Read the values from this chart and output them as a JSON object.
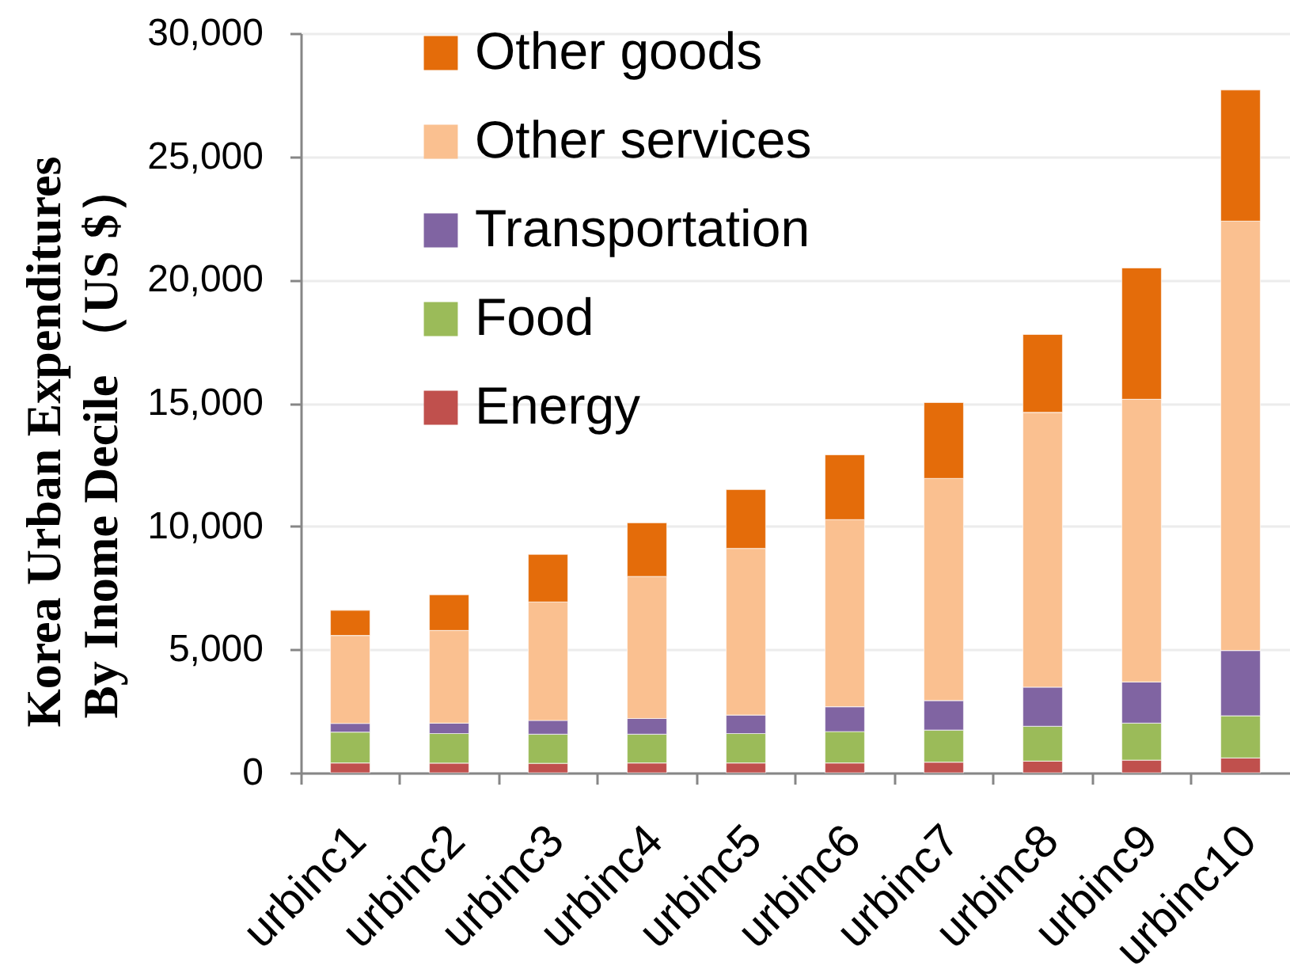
{
  "chart_data": {
    "type": "bar",
    "stacked": true,
    "ylabel": "Korea Urban Expenditures\nBy Inome Decile （US $）",
    "categories": [
      "urbinc1",
      "urbinc2",
      "urbinc3",
      "urbinc4",
      "urbinc5",
      "urbinc6",
      "urbinc7",
      "urbinc8",
      "urbinc9",
      "urbinc10"
    ],
    "series": [
      {
        "name": "Energy",
        "color": "#c0504d",
        "values": [
          400,
          390,
          380,
          400,
          400,
          400,
          430,
          470,
          510,
          600
        ]
      },
      {
        "name": "Food",
        "color": "#9bbb59",
        "values": [
          1250,
          1200,
          1180,
          1160,
          1190,
          1270,
          1300,
          1410,
          1500,
          1710
        ]
      },
      {
        "name": "Transportation",
        "color": "#8064a2",
        "values": [
          350,
          420,
          560,
          640,
          750,
          1010,
          1200,
          1590,
          1670,
          2650
        ]
      },
      {
        "name": "Other services",
        "color": "#fac090",
        "values": [
          3570,
          3760,
          4810,
          5760,
          6760,
          7590,
          9010,
          11150,
          11470,
          17420
        ]
      },
      {
        "name": "Other goods",
        "color": "#e46c0a",
        "values": [
          1020,
          1450,
          1930,
          2180,
          2390,
          2630,
          3080,
          3160,
          5330,
          5320
        ]
      }
    ],
    "ylim": [
      0,
      30000
    ],
    "yticks": [
      0,
      {
        "value": 5000,
        "label": "5,000"
      },
      {
        "value": 10000,
        "label": "10,000"
      },
      {
        "value": 15000,
        "label": "15,000"
      },
      {
        "value": 20000,
        "label": "20,000"
      },
      {
        "value": 25000,
        "label": "25,000"
      },
      {
        "value": 30000,
        "label": "30,000"
      }
    ],
    "grid": "y",
    "legend": "top left"
  }
}
